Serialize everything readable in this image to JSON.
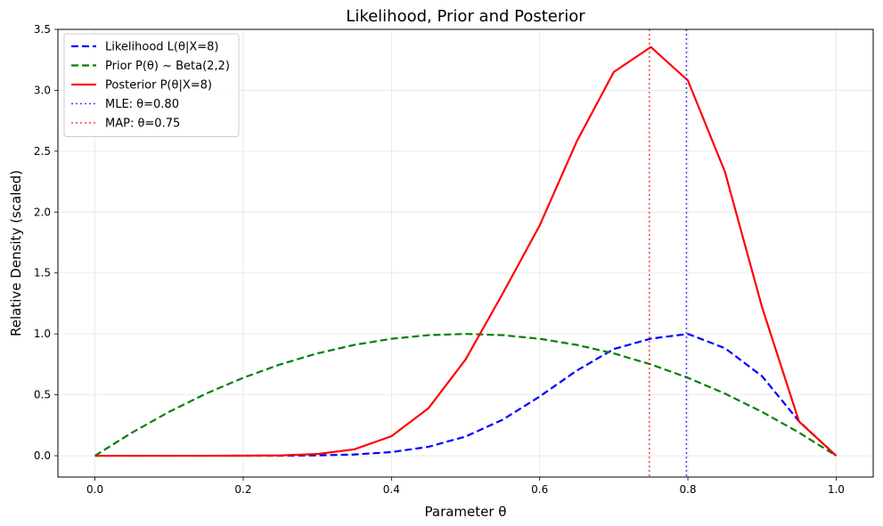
{
  "chart_data": {
    "type": "line",
    "title": "Likelihood, Prior and Posterior",
    "xlabel": "Parameter θ",
    "ylabel": "Relative Density (scaled)",
    "xlim": [
      -0.05,
      1.05
    ],
    "ylim": [
      -0.175,
      3.5
    ],
    "xticks": [
      0.0,
      0.2,
      0.4,
      0.6,
      0.8,
      1.0
    ],
    "xtick_labels": [
      "0.0",
      "0.2",
      "0.4",
      "0.6",
      "0.8",
      "1.0"
    ],
    "yticks": [
      0.0,
      0.5,
      1.0,
      1.5,
      2.0,
      2.5,
      3.0,
      3.5
    ],
    "ytick_labels": [
      "0.0",
      "0.5",
      "1.0",
      "1.5",
      "2.0",
      "2.5",
      "3.0",
      "3.5"
    ],
    "grid": true,
    "legend_position": "top-left",
    "series": [
      {
        "name": "Likelihood L(θ|X=8)",
        "style": "dashed",
        "color": "#0000ff",
        "x": [
          0.0,
          0.05,
          0.1,
          0.15,
          0.2,
          0.25,
          0.3,
          0.35,
          0.4,
          0.45,
          0.5,
          0.55,
          0.6,
          0.65,
          0.7,
          0.75,
          0.8,
          0.85,
          0.9,
          0.95,
          1.0
        ],
        "values": [
          0.0,
          0.0,
          0.0,
          0.0,
          0.0001,
          0.0006,
          0.0029,
          0.0102,
          0.0297,
          0.0734,
          0.1573,
          0.2955,
          0.4861,
          0.6985,
          0.8758,
          0.9611,
          1.0,
          0.8828,
          0.6533,
          0.2824,
          0.0
        ]
      },
      {
        "name": "Prior P(θ) ~ Beta(2,2)",
        "style": "dashed",
        "color": "#008000",
        "x": [
          0.0,
          0.05,
          0.1,
          0.15,
          0.2,
          0.25,
          0.3,
          0.35,
          0.4,
          0.45,
          0.5,
          0.55,
          0.6,
          0.65,
          0.7,
          0.75,
          0.8,
          0.85,
          0.9,
          0.95,
          1.0
        ],
        "values": [
          0.0,
          0.19,
          0.36,
          0.51,
          0.64,
          0.75,
          0.84,
          0.91,
          0.96,
          0.99,
          1.0,
          0.99,
          0.96,
          0.91,
          0.84,
          0.75,
          0.64,
          0.51,
          0.36,
          0.19,
          0.0
        ]
      },
      {
        "name": "Posterior P(θ|X=8)",
        "style": "solid",
        "color": "#ff0000",
        "x": [
          0.0,
          0.05,
          0.1,
          0.15,
          0.2,
          0.25,
          0.3,
          0.35,
          0.4,
          0.45,
          0.5,
          0.55,
          0.6,
          0.65,
          0.7,
          0.75,
          0.8,
          0.85,
          0.9,
          0.95,
          1.0
        ],
        "values": [
          0.0,
          0.0,
          0.0,
          0.0,
          0.0002,
          0.0025,
          0.0138,
          0.0527,
          0.16,
          0.39,
          0.79,
          1.33,
          1.89,
          2.58,
          3.15,
          3.355,
          3.08,
          2.33,
          1.22,
          0.28,
          0.0
        ]
      }
    ],
    "vlines": [
      {
        "name": "MLE: θ=0.80",
        "x": 0.798,
        "style": "dotted",
        "color": "#0000ff"
      },
      {
        "name": "MAP: θ=0.75",
        "x": 0.748,
        "style": "dotted",
        "color": "#ff0000"
      }
    ]
  }
}
